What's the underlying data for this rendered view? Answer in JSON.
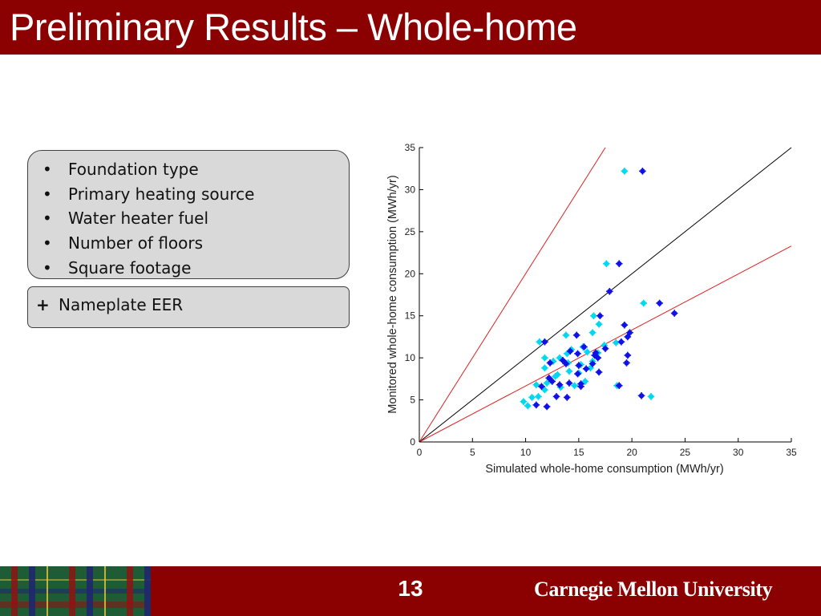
{
  "slide": {
    "title": "Preliminary Results – Whole-home",
    "page_number": "13",
    "institution": "Carnegie Mellon University"
  },
  "box1": {
    "bullet_glyph": "•",
    "items": [
      "Foundation type",
      "Primary heating source",
      "Water heater fuel",
      "Number of floors",
      "Square footage"
    ]
  },
  "box2": {
    "prefix": "+",
    "text": "Nameplate EER"
  },
  "colors": {
    "header": "#8b0000",
    "box_fill": "#d9d9d9",
    "series_cyan": "#00d8f0",
    "series_blue": "#1010e8",
    "red_line": "#e02020",
    "black_line": "#000000"
  },
  "chart_data": {
    "type": "scatter",
    "xlabel": "Simulated whole-home consumption (MWh/yr)",
    "ylabel": "Monitored whole-home consumption (MWh/yr)",
    "xlim": [
      0,
      35
    ],
    "ylim": [
      0,
      35
    ],
    "xticks": [
      0,
      5,
      10,
      15,
      20,
      25,
      30,
      35
    ],
    "yticks": [
      0,
      5,
      10,
      15,
      20,
      25,
      30,
      35
    ],
    "grid": false,
    "reference_lines": [
      {
        "color": "#000000",
        "from": [
          0,
          0
        ],
        "to": [
          35,
          35
        ]
      },
      {
        "color": "#e02020",
        "from": [
          0,
          0
        ],
        "to": [
          35,
          23.3
        ]
      },
      {
        "color": "#e02020",
        "from": [
          0,
          0
        ],
        "to": [
          17.5,
          35
        ]
      }
    ],
    "series": [
      {
        "color": "#00d8f0",
        "points": [
          [
            19.3,
            32.2
          ],
          [
            17.6,
            21.2
          ],
          [
            21.1,
            16.5
          ],
          [
            16.4,
            15.0
          ],
          [
            16.9,
            14.0
          ],
          [
            16.3,
            13.0
          ],
          [
            13.8,
            12.7
          ],
          [
            11.3,
            11.9
          ],
          [
            13.2,
            10.0
          ],
          [
            14.3,
            11.0
          ],
          [
            15.4,
            11.3
          ],
          [
            16.8,
            10.6
          ],
          [
            11.8,
            10.0
          ],
          [
            12.6,
            9.6
          ],
          [
            14.0,
            9.4
          ],
          [
            15.2,
            9.2
          ],
          [
            16.3,
            9.6
          ],
          [
            18.5,
            11.8
          ],
          [
            11.8,
            8.8
          ],
          [
            13.0,
            8.0
          ],
          [
            14.1,
            8.4
          ],
          [
            15.0,
            8.2
          ],
          [
            16.1,
            8.8
          ],
          [
            12.0,
            7.0
          ],
          [
            13.3,
            6.5
          ],
          [
            14.6,
            6.7
          ],
          [
            15.6,
            7.2
          ],
          [
            11.0,
            6.8
          ],
          [
            11.8,
            6.2
          ],
          [
            10.6,
            5.3
          ],
          [
            11.2,
            5.4
          ],
          [
            9.8,
            4.8
          ],
          [
            10.2,
            4.3
          ],
          [
            21.8,
            5.4
          ],
          [
            18.6,
            6.7
          ],
          [
            12.8,
            7.8
          ],
          [
            13.9,
            10.5
          ],
          [
            17.4,
            11.5
          ],
          [
            15.8,
            10.7
          ]
        ]
      },
      {
        "color": "#1010e8",
        "points": [
          [
            21.0,
            32.2
          ],
          [
            18.8,
            21.2
          ],
          [
            17.9,
            17.9
          ],
          [
            22.6,
            16.5
          ],
          [
            24.0,
            15.3
          ],
          [
            17.0,
            15.0
          ],
          [
            19.3,
            13.9
          ],
          [
            19.8,
            13.0
          ],
          [
            19.6,
            12.5
          ],
          [
            19.0,
            11.9
          ],
          [
            14.8,
            12.7
          ],
          [
            15.5,
            11.3
          ],
          [
            17.5,
            11.1
          ],
          [
            14.9,
            10.5
          ],
          [
            16.6,
            10.6
          ],
          [
            13.5,
            9.7
          ],
          [
            14.2,
            10.8
          ],
          [
            12.3,
            9.4
          ],
          [
            13.8,
            9.3
          ],
          [
            15.0,
            9.1
          ],
          [
            16.3,
            9.3
          ],
          [
            16.8,
            10.0
          ],
          [
            19.6,
            10.3
          ],
          [
            19.5,
            9.4
          ],
          [
            15.7,
            8.7
          ],
          [
            14.9,
            8.1
          ],
          [
            16.9,
            8.3
          ],
          [
            12.2,
            7.6
          ],
          [
            12.5,
            7.2
          ],
          [
            13.2,
            6.8
          ],
          [
            14.1,
            7.0
          ],
          [
            15.2,
            6.9
          ],
          [
            11.5,
            6.6
          ],
          [
            12.9,
            5.4
          ],
          [
            13.9,
            5.3
          ],
          [
            11.0,
            4.4
          ],
          [
            12.0,
            4.2
          ],
          [
            20.9,
            5.5
          ],
          [
            18.8,
            6.7
          ],
          [
            11.8,
            11.9
          ],
          [
            16.5,
            10.3
          ],
          [
            15.2,
            6.6
          ]
        ]
      }
    ]
  }
}
